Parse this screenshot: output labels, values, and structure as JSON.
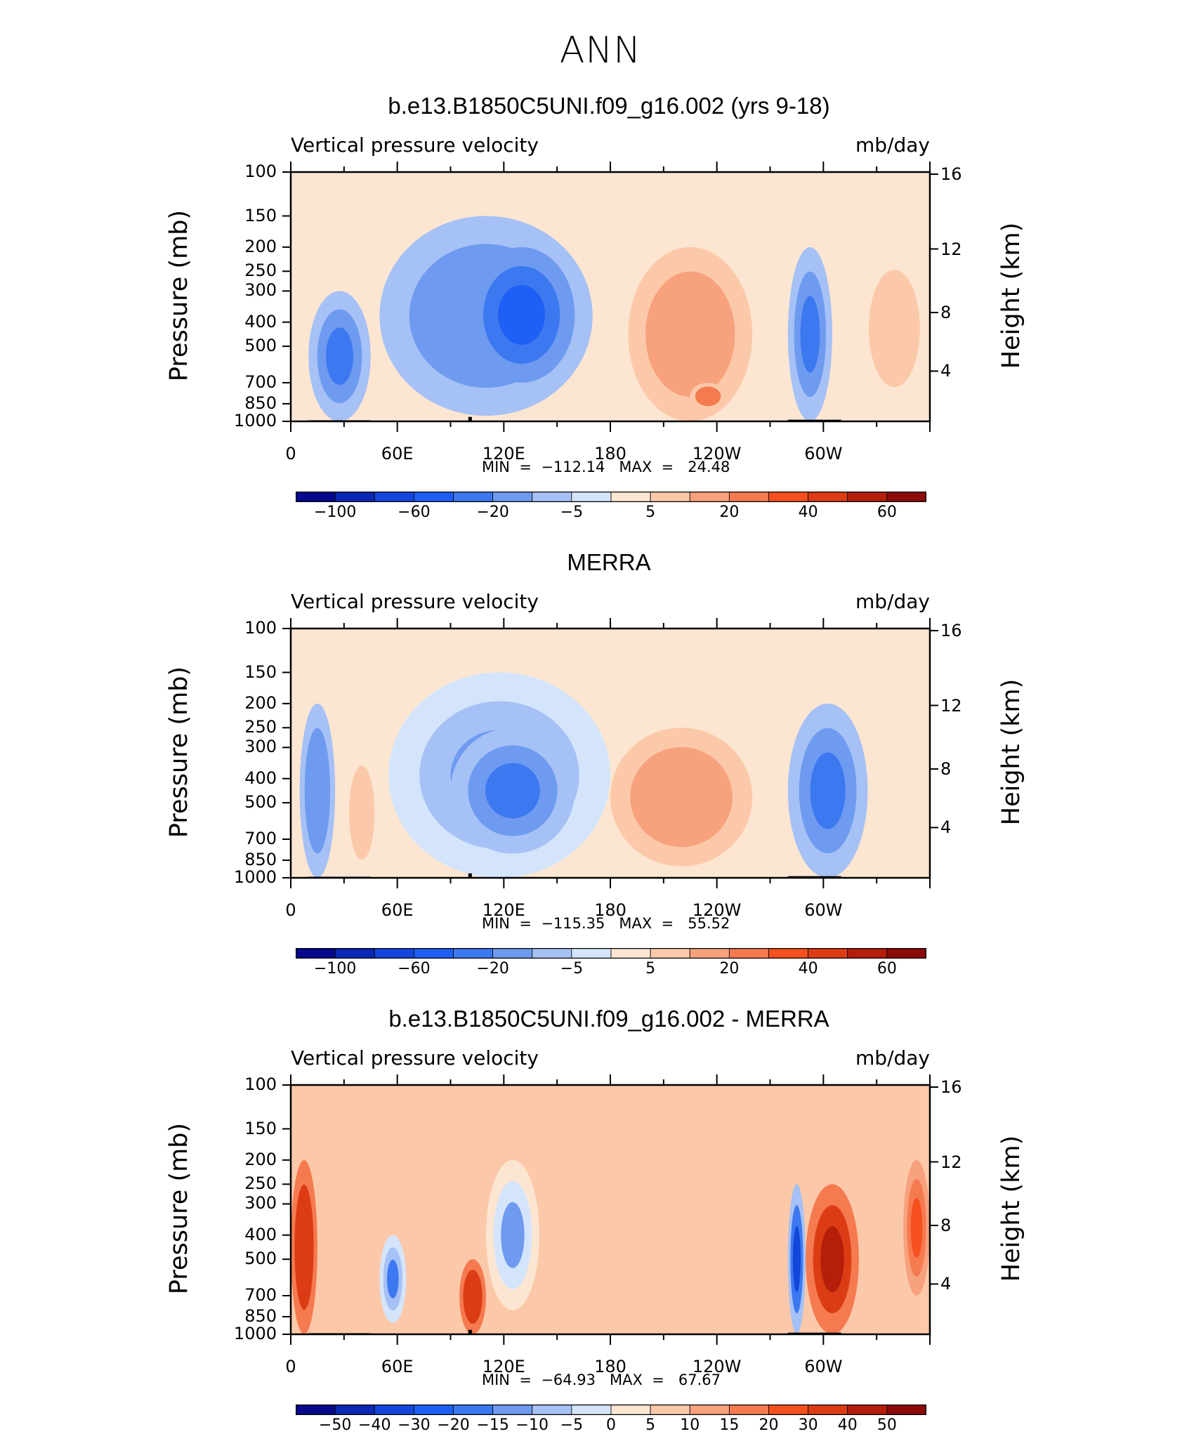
{
  "figure": {
    "title": "ANN"
  },
  "colors": {
    "scale": [
      "#08088c",
      "#0a28b4",
      "#1446dc",
      "#1e5ff5",
      "#3c78f0",
      "#6e9bf0",
      "#a6c1f5",
      "#d4e5fb",
      "#fce6d2",
      "#fbc9a9",
      "#f7a17d",
      "#f57a50",
      "#f5501e",
      "#dc3c14",
      "#b41e0a",
      "#8c0a0a"
    ],
    "topography": "#000000"
  },
  "panels": [
    {
      "title": "b.e13.B1850C5UNI.f09_g16.002 (yrs 9-18)",
      "variable": "Vertical pressure velocity",
      "units": "mb/day",
      "ylabel": "Pressure (mb)",
      "y2label": "Height (km)",
      "min_label": "MIN  =  −112.14",
      "max_label": "MAX  =   24.48",
      "colorbar_labels": [
        "−100",
        "−60",
        "−20",
        "−5",
        "5",
        "20",
        "40",
        "60"
      ]
    },
    {
      "title": "MERRA",
      "variable": "Vertical pressure velocity",
      "units": "mb/day",
      "ylabel": "Pressure (mb)",
      "y2label": "Height (km)",
      "min_label": "MIN  =  −115.35",
      "max_label": "MAX  =   55.52",
      "colorbar_labels": [
        "−100",
        "−60",
        "−20",
        "−5",
        "5",
        "20",
        "40",
        "60"
      ]
    },
    {
      "title": "b.e13.B1850C5UNI.f09_g16.002 - MERRA",
      "variable": "Vertical pressure velocity",
      "units": "mb/day",
      "ylabel": "Pressure (mb)",
      "y2label": "Height (km)",
      "min_label": "MIN  =  −64.93",
      "max_label": "MAX  =   67.67",
      "colorbar_labels": [
        "−50",
        "−40",
        "−30",
        "−20",
        "−15",
        "−10",
        "−5",
        "0",
        "5",
        "10",
        "15",
        "20",
        "30",
        "40",
        "50"
      ]
    }
  ],
  "chart_data": [
    {
      "type": "heatmap",
      "title": "b.e13.B1850C5UNI.f09_g16.002 (yrs 9-18)",
      "xlabel": "",
      "ylabel": "Pressure (mb)",
      "y2label": "Height (km)",
      "x_tick_labels": [
        "0",
        "60E",
        "120E",
        "180",
        "120W",
        "60W"
      ],
      "y_tick_labels": [
        "100",
        "150",
        "200",
        "250",
        "300",
        "400",
        "500",
        "700",
        "850",
        "1000"
      ],
      "y2_tick_labels": [
        "16",
        "12",
        "8",
        "4"
      ],
      "ylim": [
        1000,
        100
      ],
      "y_scale": "log",
      "units": "mb/day",
      "min": -112.14,
      "max": 24.48,
      "regions": [
        {
          "lon_range": [
            10,
            45
          ],
          "p_range": [
            300,
            1000
          ],
          "value": -40
        },
        {
          "lon_range": [
            50,
            170
          ],
          "p_range": [
            150,
            950
          ],
          "value": -30
        },
        {
          "lon_range": [
            100,
            160
          ],
          "p_range": [
            200,
            700
          ],
          "value": -60
        },
        {
          "lon_range": [
            190,
            260
          ],
          "p_range": [
            200,
            1000
          ],
          "value": 10
        },
        {
          "lon_range": [
            225,
            245
          ],
          "p_range": [
            700,
            900
          ],
          "value": 20
        },
        {
          "lon_range": [
            280,
            305
          ],
          "p_range": [
            200,
            1000
          ],
          "value": -50
        },
        {
          "lon_range": [
            320,
            360
          ],
          "p_range": [
            200,
            900
          ],
          "value": 5
        }
      ]
    },
    {
      "type": "heatmap",
      "title": "MERRA",
      "xlabel": "",
      "ylabel": "Pressure (mb)",
      "y2label": "Height (km)",
      "x_tick_labels": [
        "0",
        "60E",
        "120E",
        "180",
        "120W",
        "60W"
      ],
      "y_tick_labels": [
        "100",
        "150",
        "200",
        "250",
        "300",
        "400",
        "500",
        "700",
        "850",
        "1000"
      ],
      "y2_tick_labels": [
        "16",
        "12",
        "8",
        "4"
      ],
      "ylim": [
        1000,
        100
      ],
      "y_scale": "log",
      "units": "mb/day",
      "min": -115.35,
      "max": 55.52,
      "regions": [
        {
          "lon_range": [
            5,
            25
          ],
          "p_range": [
            200,
            1000
          ],
          "value": -30
        },
        {
          "lon_range": [
            30,
            50
          ],
          "p_range": [
            300,
            1000
          ],
          "value": 5
        },
        {
          "lon_range": [
            55,
            180
          ],
          "p_range": [
            150,
            1000
          ],
          "value": -20
        },
        {
          "lon_range": [
            90,
            160
          ],
          "p_range": [
            250,
            800
          ],
          "value": -40
        },
        {
          "lon_range": [
            180,
            260
          ],
          "p_range": [
            250,
            900
          ],
          "value": 10
        },
        {
          "lon_range": [
            280,
            325
          ],
          "p_range": [
            200,
            1000
          ],
          "value": -40
        }
      ]
    },
    {
      "type": "heatmap",
      "title": "b.e13.B1850C5UNI.f09_g16.002 - MERRA",
      "xlabel": "",
      "ylabel": "Pressure (mb)",
      "y2label": "Height (km)",
      "x_tick_labels": [
        "0",
        "60E",
        "120E",
        "180",
        "120W",
        "60W"
      ],
      "y_tick_labels": [
        "100",
        "150",
        "200",
        "250",
        "300",
        "400",
        "500",
        "700",
        "850",
        "1000"
      ],
      "y2_tick_labels": [
        "16",
        "12",
        "8",
        "4"
      ],
      "ylim": [
        1000,
        100
      ],
      "y_scale": "log",
      "units": "mb/day",
      "min": -64.93,
      "max": 67.67,
      "regions": [
        {
          "lon_range": [
            0,
            15
          ],
          "p_range": [
            200,
            1000
          ],
          "value": 30
        },
        {
          "lon_range": [
            50,
            65
          ],
          "p_range": [
            400,
            900
          ],
          "value": -20
        },
        {
          "lon_range": [
            95,
            110
          ],
          "p_range": [
            500,
            1000
          ],
          "value": 30
        },
        {
          "lon_range": [
            110,
            140
          ],
          "p_range": [
            200,
            800
          ],
          "value": -15
        },
        {
          "lon_range": [
            280,
            290
          ],
          "p_range": [
            250,
            1000
          ],
          "value": -40
        },
        {
          "lon_range": [
            290,
            320
          ],
          "p_range": [
            250,
            1000
          ],
          "value": 40
        },
        {
          "lon_range": [
            345,
            360
          ],
          "p_range": [
            200,
            700
          ],
          "value": 20
        }
      ]
    }
  ]
}
